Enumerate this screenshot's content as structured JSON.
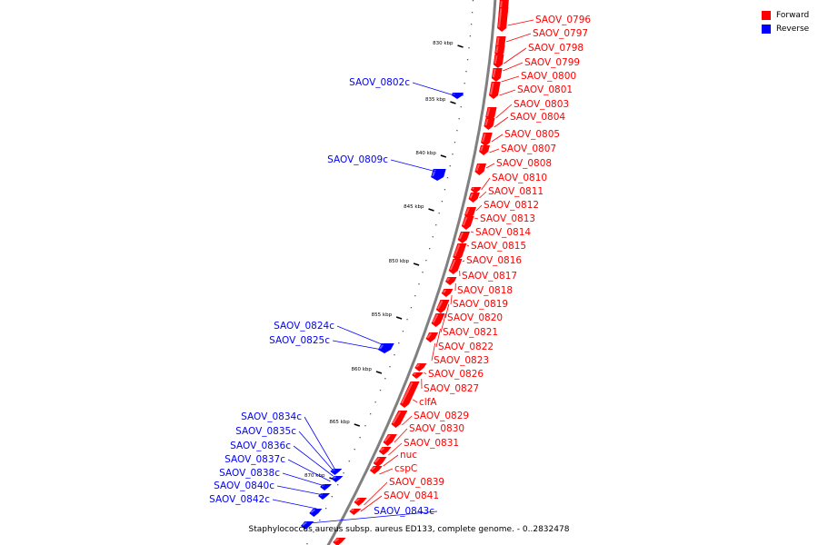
{
  "colors": {
    "forward": "#ff0000",
    "reverse": "#0000ff",
    "backbone": "#808080"
  },
  "legend": {
    "forward": "Forward",
    "reverse": "Reverse"
  },
  "caption": "Staphylococcus aureus subsp. aureus ED133, complete genome. - 0..2832478",
  "ticks": [
    "830 kbp",
    "835 kbp",
    "840 kbp",
    "845 kbp",
    "850 kbp",
    "855 kbp",
    "860 kbp",
    "865 kbp",
    "870 kbp"
  ],
  "genes": [
    {
      "name": "SAOV_0796",
      "strand": "forward"
    },
    {
      "name": "SAOV_0797",
      "strand": "forward"
    },
    {
      "name": "SAOV_0798",
      "strand": "forward"
    },
    {
      "name": "SAOV_0799",
      "strand": "forward"
    },
    {
      "name": "SAOV_0800",
      "strand": "forward"
    },
    {
      "name": "SAOV_0801",
      "strand": "forward"
    },
    {
      "name": "SAOV_0803",
      "strand": "forward"
    },
    {
      "name": "SAOV_0804",
      "strand": "forward"
    },
    {
      "name": "SAOV_0805",
      "strand": "forward"
    },
    {
      "name": "SAOV_0807",
      "strand": "forward"
    },
    {
      "name": "SAOV_0808",
      "strand": "forward"
    },
    {
      "name": "SAOV_0810",
      "strand": "forward"
    },
    {
      "name": "SAOV_0811",
      "strand": "forward"
    },
    {
      "name": "SAOV_0812",
      "strand": "forward"
    },
    {
      "name": "SAOV_0813",
      "strand": "forward"
    },
    {
      "name": "SAOV_0814",
      "strand": "forward"
    },
    {
      "name": "SAOV_0815",
      "strand": "forward"
    },
    {
      "name": "SAOV_0816",
      "strand": "forward"
    },
    {
      "name": "SAOV_0817",
      "strand": "forward"
    },
    {
      "name": "SAOV_0818",
      "strand": "forward"
    },
    {
      "name": "SAOV_0819",
      "strand": "forward"
    },
    {
      "name": "SAOV_0820",
      "strand": "forward"
    },
    {
      "name": "SAOV_0821",
      "strand": "forward"
    },
    {
      "name": "SAOV_0822",
      "strand": "forward"
    },
    {
      "name": "SAOV_0823",
      "strand": "forward"
    },
    {
      "name": "SAOV_0826",
      "strand": "forward"
    },
    {
      "name": "SAOV_0827",
      "strand": "forward"
    },
    {
      "name": "clfA",
      "strand": "forward"
    },
    {
      "name": "SAOV_0829",
      "strand": "forward"
    },
    {
      "name": "SAOV_0830",
      "strand": "forward"
    },
    {
      "name": "SAOV_0831",
      "strand": "forward"
    },
    {
      "name": "nuc",
      "strand": "forward"
    },
    {
      "name": "cspC",
      "strand": "forward"
    },
    {
      "name": "SAOV_0839",
      "strand": "forward"
    },
    {
      "name": "SAOV_0841",
      "strand": "forward"
    },
    {
      "name": "SAOV_0802c",
      "strand": "reverse"
    },
    {
      "name": "SAOV_0809c",
      "strand": "reverse"
    },
    {
      "name": "SAOV_0824c",
      "strand": "reverse"
    },
    {
      "name": "SAOV_0825c",
      "strand": "reverse"
    },
    {
      "name": "SAOV_0834c",
      "strand": "reverse"
    },
    {
      "name": "SAOV_0835c",
      "strand": "reverse"
    },
    {
      "name": "SAOV_0836c",
      "strand": "reverse"
    },
    {
      "name": "SAOV_0837c",
      "strand": "reverse"
    },
    {
      "name": "SAOV_0838c",
      "strand": "reverse"
    },
    {
      "name": "SAOV_0840c",
      "strand": "reverse"
    },
    {
      "name": "SAOV_0842c",
      "strand": "reverse"
    },
    {
      "name": "SAOV_0843c",
      "strand": "reverse"
    }
  ]
}
